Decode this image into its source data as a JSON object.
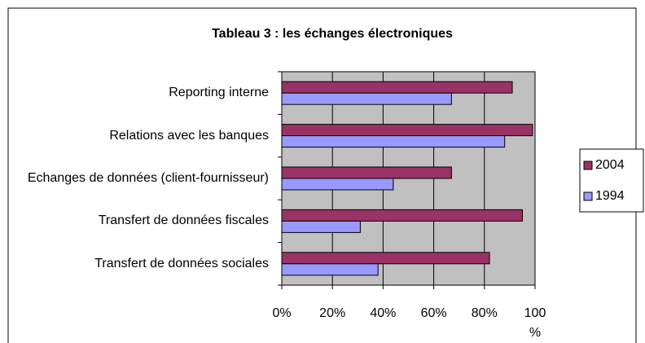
{
  "chart_data": {
    "type": "bar",
    "orientation": "horizontal",
    "title": "Tableau 3 : les échanges électroniques",
    "categories": [
      "Reporting interne",
      "Relations avec les banques",
      "Echanges de données (client-fournisseur)",
      "Transfert de données fiscales",
      "Transfert de données sociales"
    ],
    "series": [
      {
        "name": "2004",
        "color": "#993366",
        "values": [
          91,
          99,
          67,
          95,
          82
        ]
      },
      {
        "name": "1994",
        "color": "#9999ff",
        "values": [
          67,
          88,
          44,
          31,
          38
        ]
      }
    ],
    "xlim": [
      0,
      100
    ],
    "xticks": [
      {
        "value": 0,
        "label": "0%"
      },
      {
        "value": 20,
        "label": "20%"
      },
      {
        "value": 40,
        "label": "40%"
      },
      {
        "value": 60,
        "label": "60%"
      },
      {
        "value": 80,
        "label": "80%"
      },
      {
        "value": 100,
        "label": "100 %"
      }
    ],
    "grid": true,
    "legend": "right"
  }
}
